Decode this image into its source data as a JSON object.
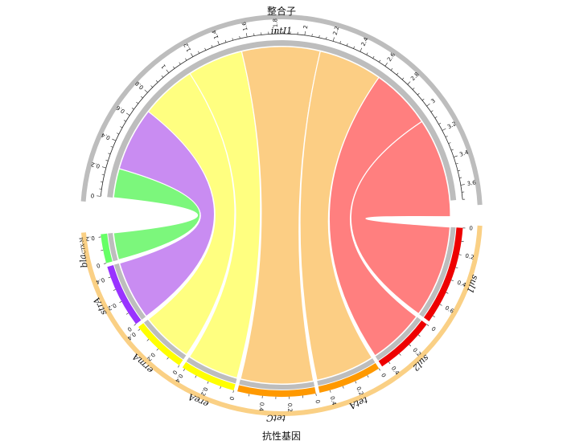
{
  "chart_data": {
    "type": "chord",
    "groups": {
      "top": "整合子",
      "bottom": "抗性基因"
    },
    "source": {
      "name": "intI1",
      "axis_max": 3.7,
      "tick_labels": [
        "0",
        "0.2",
        "0.4",
        "0.6",
        "0.8",
        "1",
        "1.2",
        "1.4",
        "1.6",
        "1.8",
        "2",
        "2.2",
        "2.4",
        "2.6",
        "2.8",
        "3",
        "3.2",
        "3.4",
        "3.6"
      ]
    },
    "targets": [
      {
        "name": "blaCTX-M",
        "label_main": "bla",
        "label_sub": "CTX-M",
        "value": 0.22,
        "color": "#66ff66",
        "ribbon": "#7cf77c",
        "tick_labels": [
          "0",
          "0.2"
        ]
      },
      {
        "name": "strA",
        "label_main": "strA",
        "label_sub": "",
        "value": 0.48,
        "color": "#9933ff",
        "ribbon": "#c98cf2",
        "tick_labels": [
          "0",
          "0.2",
          "0.4"
        ]
      },
      {
        "name": "ermA",
        "label_main": "ermA",
        "label_sub": "",
        "value": 0.42,
        "color": "#ffff00",
        "ribbon": "#ffff80",
        "tick_labels": [
          "0",
          "0.2",
          "0.4"
        ]
      },
      {
        "name": "ereA",
        "label_main": "ereA",
        "label_sub": "",
        "value": 0.42,
        "color": "#ffff00",
        "ribbon": "#ffff80",
        "tick_labels": [
          "0",
          "0.2",
          "0.4"
        ]
      },
      {
        "name": "tetC",
        "label_main": "tetC",
        "label_sub": "",
        "value": 0.59,
        "color": "#ff9900",
        "ribbon": "#fcce84",
        "tick_labels": [
          "0",
          "0.2",
          "0.4"
        ]
      },
      {
        "name": "tetA",
        "label_main": "tetA",
        "label_sub": "",
        "value": 0.48,
        "color": "#ff9900",
        "ribbon": "#fcce84",
        "tick_labels": [
          "0",
          "0.2",
          "0.4"
        ]
      },
      {
        "name": "sul2",
        "label_main": "sul2",
        "label_sub": "",
        "value": 0.46,
        "color": "#ee0000",
        "ribbon": "#ff7f7f",
        "tick_labels": [
          "0",
          "0.2",
          "0.4"
        ]
      },
      {
        "name": "sul1",
        "label_main": "sul1",
        "label_sub": "",
        "value": 0.75,
        "color": "#ee0000",
        "ribbon": "#ff7f7f",
        "tick_labels": [
          "0",
          "0.2",
          "0.4",
          "0.6"
        ]
      }
    ],
    "colors": {
      "group_top": "#bdbdbd",
      "group_bottom": "#fad085",
      "source_track": "#bdbdbd"
    }
  }
}
